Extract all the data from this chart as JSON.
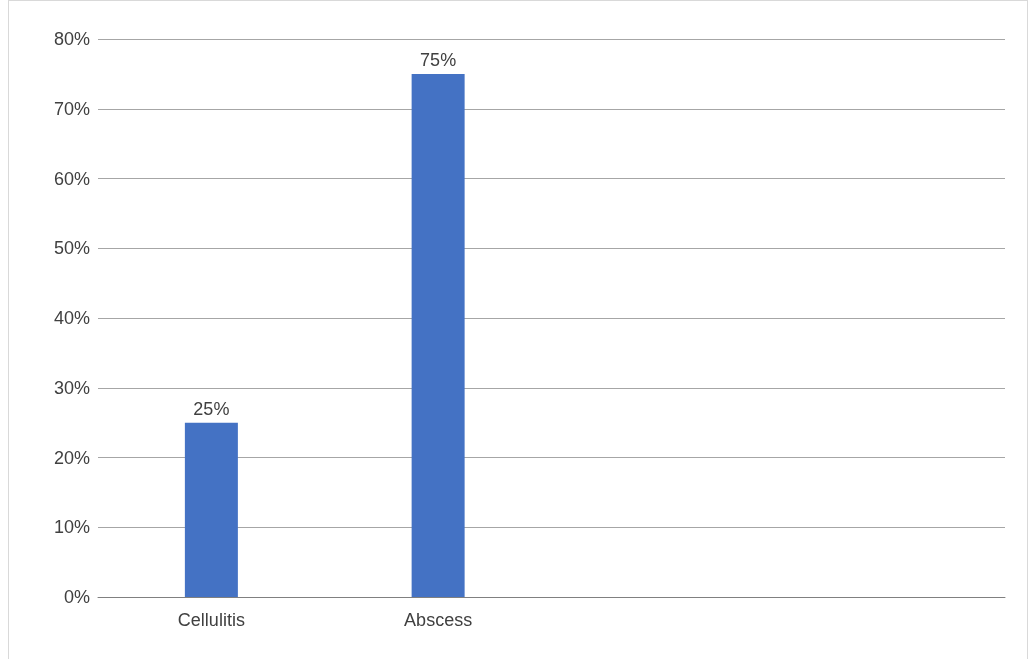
{
  "chart_data": {
    "type": "bar",
    "categories": [
      "Cellulitis",
      "Abscess",
      null,
      null
    ],
    "values": [
      25,
      75,
      null,
      null
    ],
    "color": "#4472c4",
    "value_labels": [
      "25%",
      "75%",
      null,
      null
    ],
    "ylim": [
      0,
      80
    ],
    "yticks": [
      {
        "value": 0,
        "label": "0%"
      },
      {
        "value": 10,
        "label": "10%"
      },
      {
        "value": 20,
        "label": "20%"
      },
      {
        "value": 30,
        "label": "30%"
      },
      {
        "value": 40,
        "label": "40%"
      },
      {
        "value": 50,
        "label": "50%"
      },
      {
        "value": 60,
        "label": "60%"
      },
      {
        "value": 70,
        "label": "70%"
      },
      {
        "value": 80,
        "label": "80%"
      }
    ],
    "grid": "y"
  }
}
